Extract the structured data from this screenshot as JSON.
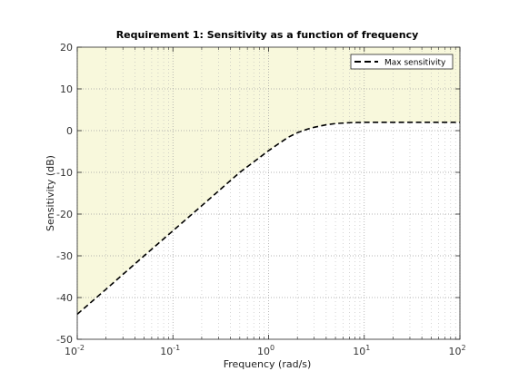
{
  "chart_data": {
    "type": "line",
    "title": "Requirement 1: Sensitivity as a function of frequency",
    "xlabel": "Frequency (rad/s)",
    "ylabel": "Sensitivity (dB)",
    "xscale": "log",
    "xlim": [
      0.01,
      100
    ],
    "ylim": [
      -50,
      20
    ],
    "x_ticks": [
      0.01,
      0.1,
      1,
      10,
      100
    ],
    "x_tick_labels": [
      [
        "10",
        "-2"
      ],
      [
        "10",
        "-1"
      ],
      [
        "10",
        "0"
      ],
      [
        "10",
        "1"
      ],
      [
        "10",
        "2"
      ]
    ],
    "y_ticks": [
      -50,
      -40,
      -30,
      -20,
      -10,
      0,
      10,
      20
    ],
    "y_tick_labels": [
      "-50",
      "-40",
      "-30",
      "-20",
      "-10",
      "0",
      "10",
      "20"
    ],
    "grid": true,
    "legend_position": "top-right",
    "shaded_region_color": "#f8f8dc",
    "series": [
      {
        "name": "Max sensitivity",
        "style": "dashed",
        "color": "#000000",
        "x": [
          0.01,
          0.02,
          0.05,
          0.1,
          0.2,
          0.5,
          0.8,
          1,
          1.3,
          1.6,
          2,
          2.5,
          3,
          4,
          5,
          7,
          10,
          20,
          50,
          100
        ],
        "y": [
          -44,
          -38,
          -30,
          -24,
          -18,
          -10,
          -6.5,
          -4.8,
          -3,
          -1.6,
          -0.5,
          0.3,
          0.8,
          1.4,
          1.7,
          1.9,
          2,
          2,
          2,
          2
        ]
      }
    ]
  }
}
